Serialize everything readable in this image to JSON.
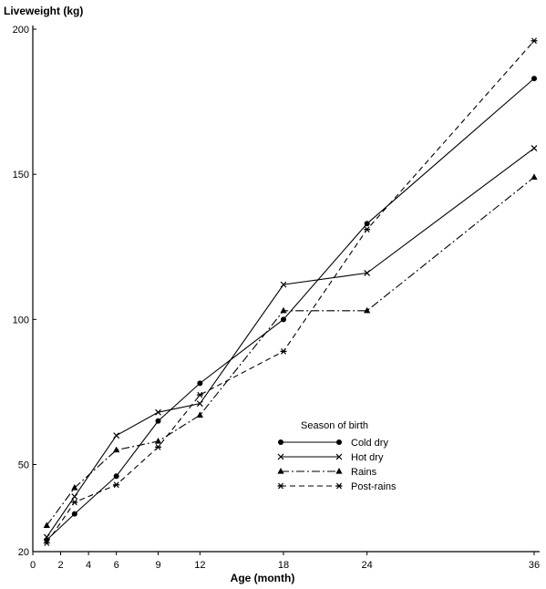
{
  "chart_data": {
    "type": "line",
    "title": "",
    "ylabel": "Liveweight (kg)",
    "xlabel": "Age (month)",
    "xlim": [
      0,
      36
    ],
    "ylim": [
      20,
      200
    ],
    "x_ticks": [
      0,
      2,
      4,
      6,
      9,
      12,
      18,
      24,
      36
    ],
    "y_ticks": [
      20,
      50,
      100,
      150,
      200
    ],
    "grid": false,
    "legend": {
      "title": "Season of birth",
      "placement": "center"
    },
    "series": [
      {
        "name": "Cold dry",
        "marker": "circle",
        "dash": "solid",
        "x": [
          1,
          3,
          6,
          9,
          12,
          18,
          24,
          36
        ],
        "y": [
          24,
          33,
          46,
          65,
          78,
          100,
          133,
          183
        ]
      },
      {
        "name": "Hot dry",
        "marker": "x",
        "dash": "solid",
        "x": [
          1,
          3,
          6,
          9,
          12,
          18,
          24,
          36
        ],
        "y": [
          25,
          39,
          60,
          68,
          71,
          112,
          116,
          159
        ]
      },
      {
        "name": "Rains",
        "marker": "triangle",
        "dash": "dashdot",
        "x": [
          1,
          3,
          6,
          9,
          12,
          18,
          24,
          36
        ],
        "y": [
          29,
          42,
          55,
          58,
          67,
          103,
          103,
          149
        ]
      },
      {
        "name": "Post-rains",
        "marker": "asterisk",
        "dash": "dashed",
        "x": [
          1,
          3,
          6,
          9,
          12,
          18,
          24,
          36
        ],
        "y": [
          23,
          37,
          43,
          56,
          74,
          89,
          131,
          196
        ]
      }
    ]
  }
}
